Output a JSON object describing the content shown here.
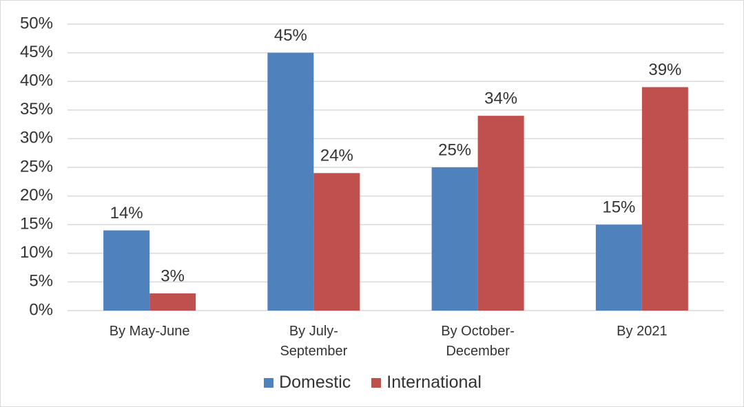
{
  "chart_data": {
    "type": "bar",
    "categories": [
      "By May-June",
      "By July-September",
      "By October-December",
      "By 2021"
    ],
    "series": [
      {
        "name": "Domestic",
        "color": "#4f81bd",
        "values": [
          14,
          45,
          25,
          15
        ],
        "value_labels": [
          "14%",
          "45%",
          "25%",
          "15%"
        ]
      },
      {
        "name": "International",
        "color": "#c0504d",
        "values": [
          3,
          24,
          34,
          39
        ],
        "value_labels": [
          "3%",
          "24%",
          "34%",
          "39%"
        ]
      }
    ],
    "ylim": [
      0,
      50
    ],
    "yticks": [
      {
        "value": 0,
        "label": "0%"
      },
      {
        "value": 5,
        "label": "5%"
      },
      {
        "value": 10,
        "label": "10%"
      },
      {
        "value": 15,
        "label": "15%"
      },
      {
        "value": 20,
        "label": "20%"
      },
      {
        "value": 25,
        "label": "25%"
      },
      {
        "value": 30,
        "label": "30%"
      },
      {
        "value": 35,
        "label": "35%"
      },
      {
        "value": 40,
        "label": "40%"
      },
      {
        "value": 45,
        "label": "45%"
      },
      {
        "value": 50,
        "label": "50%"
      }
    ],
    "grid": true,
    "legend": "bottom"
  }
}
